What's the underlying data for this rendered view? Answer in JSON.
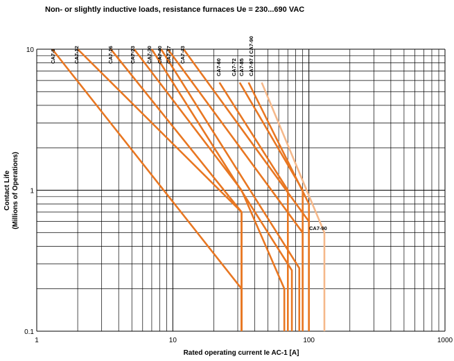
{
  "chart_data": {
    "type": "line",
    "title": "Non- or slightly inductive loads, resistance furnaces  Ue = 230...690 VAC",
    "xlabel": "Rated operating current Ie AC-1 [A]",
    "ylabel_line1": "Contact Life",
    "ylabel_line2": "(Millions of Operations)",
    "x_scale": "log",
    "y_scale": "log",
    "xlim": [
      1,
      1000
    ],
    "ylim": [
      0.1,
      10
    ],
    "x_ticks": [
      "1",
      "10",
      "100",
      "1000"
    ],
    "y_ticks": [
      "0.1",
      "1",
      "10"
    ],
    "grid": true,
    "colors": {
      "line": "#e87722",
      "line_light": "#f5b88a",
      "grid": "#000000"
    },
    "series": [
      {
        "name": "CA7-9",
        "points": [
          [
            1.3,
            10
          ],
          [
            32,
            0.2
          ],
          [
            32,
            0.1
          ]
        ]
      },
      {
        "name": "CA7-12",
        "points": [
          [
            2,
            10
          ],
          [
            32,
            0.7
          ],
          [
            32,
            0.1
          ]
        ]
      },
      {
        "name": "CA7-16",
        "points": [
          [
            3.5,
            10
          ],
          [
            32,
            0.7
          ],
          [
            32,
            0.1
          ]
        ]
      },
      {
        "name": "CA7-23",
        "points": [
          [
            5.2,
            10
          ],
          [
            32,
            1.0
          ],
          [
            66,
            0.2
          ],
          [
            66,
            0.1
          ]
        ]
      },
      {
        "name": "CA7-30",
        "points": [
          [
            7,
            10
          ],
          [
            75,
            0.27
          ],
          [
            75,
            0.1
          ]
        ]
      },
      {
        "name": "CA7-40",
        "points": [
          [
            8.2,
            10
          ],
          [
            85,
            0.28
          ],
          [
            85,
            0.1
          ]
        ]
      },
      {
        "name": "CA7-37",
        "points": [
          [
            9.2,
            10
          ],
          [
            90,
            0.5
          ],
          [
            90,
            0.1
          ]
        ]
      },
      {
        "name": "CA7-43",
        "points": [
          [
            12,
            10
          ],
          [
            100,
            0.6
          ],
          [
            100,
            0.1
          ]
        ]
      },
      {
        "name": "CA7-60",
        "points": [
          [
            22,
            5.8
          ],
          [
            70,
            1.0
          ],
          [
            70,
            0.1
          ]
        ]
      },
      {
        "name": "CA7-72",
        "points": [
          [
            31,
            5.8
          ],
          [
            90,
            1.0
          ],
          [
            90,
            0.1
          ]
        ]
      },
      {
        "name": "CA7-85",
        "points": [
          [
            36,
            5.8
          ],
          [
            100,
            0.8
          ],
          [
            100,
            0.1
          ]
        ]
      },
      {
        "name": "CA7-97 / CA7-90",
        "points": [
          [
            45,
            5.8
          ],
          [
            130,
            0.5
          ],
          [
            130,
            0.1
          ]
        ],
        "light": true
      }
    ],
    "labels": [
      "CA7-9",
      "CA7-12",
      "CA7-16",
      "CA7-23",
      "CA7-30",
      "CA7-40",
      "CA7-37",
      "CA7-43",
      "CA7-60",
      "CA7-72",
      "CA7-85",
      "CA7-97 / CA7-90"
    ],
    "annotations": [
      "CA7-90"
    ]
  }
}
